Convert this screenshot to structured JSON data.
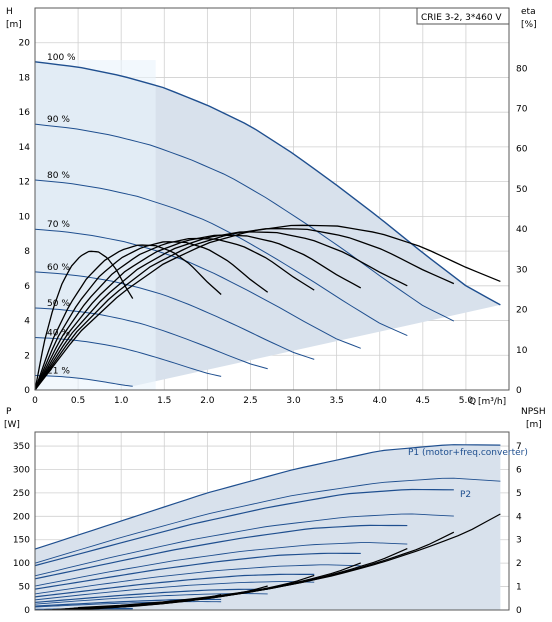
{
  "chart_data": [
    {
      "type": "line",
      "id": "qh",
      "title": "CRIE 3-2, 3*460 V",
      "ylabel": "H",
      "yunit": "[m]",
      "y2label": "eta",
      "y2unit": "[%]",
      "xlabel": "Q",
      "xunit": "[m³/h]",
      "xlim": [
        0,
        5.5
      ],
      "ylim": [
        0,
        22
      ],
      "y2lim": [
        0,
        95
      ],
      "grid": true,
      "x_ticks": [
        "0",
        "0.5",
        "1.0",
        "1.5",
        "2.0",
        "2.5",
        "3.0",
        "3.5",
        "4.0",
        "4.5",
        "5.0"
      ],
      "y_ticks": [
        "0",
        "2",
        "4",
        "6",
        "8",
        "10",
        "12",
        "14",
        "16",
        "18",
        "20"
      ],
      "y2_ticks": [
        "0",
        "10",
        "20",
        "30",
        "40",
        "50",
        "60",
        "70",
        "80"
      ],
      "speed_labels": [
        "100 %",
        "90 %",
        "80 %",
        "70 %",
        "60 %",
        "50 %",
        "40 %",
        "21 %"
      ],
      "speeds": [
        1.0,
        0.9,
        0.8,
        0.7,
        0.6,
        0.5,
        0.4,
        0.21
      ],
      "head_curve_100": {
        "x": [
          0,
          0.5,
          1.0,
          1.5,
          2.0,
          2.5,
          3.0,
          3.5,
          4.0,
          4.5,
          5.0,
          5.4
        ],
        "y": [
          18.9,
          18.6,
          18.1,
          17.4,
          16.4,
          15.2,
          13.6,
          11.8,
          9.9,
          7.9,
          6.0,
          4.9
        ]
      },
      "efficiency_curve_100": {
        "x": [
          0,
          0.5,
          1.0,
          1.5,
          2.0,
          2.5,
          3.0,
          3.5,
          4.0,
          4.5,
          5.0,
          5.4
        ],
        "y": [
          0,
          14,
          24,
          31.5,
          36.5,
          39.5,
          41,
          40.8,
          39,
          35.5,
          30.5,
          27
        ]
      }
    },
    {
      "type": "line",
      "id": "power",
      "ylabel": "P",
      "yunit": "[W]",
      "y2label": "NPSH",
      "y2unit": "[m]",
      "xlim": [
        0,
        5.5
      ],
      "ylim": [
        0,
        380
      ],
      "y2lim": [
        0,
        7.6
      ],
      "grid": true,
      "y_ticks": [
        "0",
        "50",
        "100",
        "150",
        "200",
        "250",
        "300",
        "350"
      ],
      "y2_ticks": [
        "0",
        "1",
        "2",
        "3",
        "4",
        "5",
        "6",
        "7"
      ],
      "series": [
        {
          "name": "P1 (motor+freq.converter)",
          "x": [
            0,
            1,
            2,
            3,
            4,
            4.8,
            5.4
          ],
          "values": [
            130,
            190,
            250,
            300,
            340,
            353,
            352
          ]
        },
        {
          "name": "P2",
          "x": [
            0,
            1,
            2,
            3,
            4,
            4.8,
            5.4
          ],
          "values": [
            100,
            155,
            205,
            245,
            272,
            282,
            275
          ]
        }
      ],
      "npsh_curve": {
        "x": [
          0.5,
          1,
          1.5,
          2,
          2.5,
          3,
          3.5,
          4,
          4.5,
          5,
          5.4
        ],
        "y": [
          0.1,
          0.2,
          0.35,
          0.55,
          0.8,
          1.1,
          1.5,
          2.0,
          2.6,
          3.3,
          4.1
        ]
      }
    }
  ],
  "colors": {
    "curve_blue": "#1f4f8f",
    "envelope_fill": "#d8e1ec",
    "light_fill": "#eaf4fc",
    "black": "#000000",
    "grid": "#d0d0d0"
  }
}
